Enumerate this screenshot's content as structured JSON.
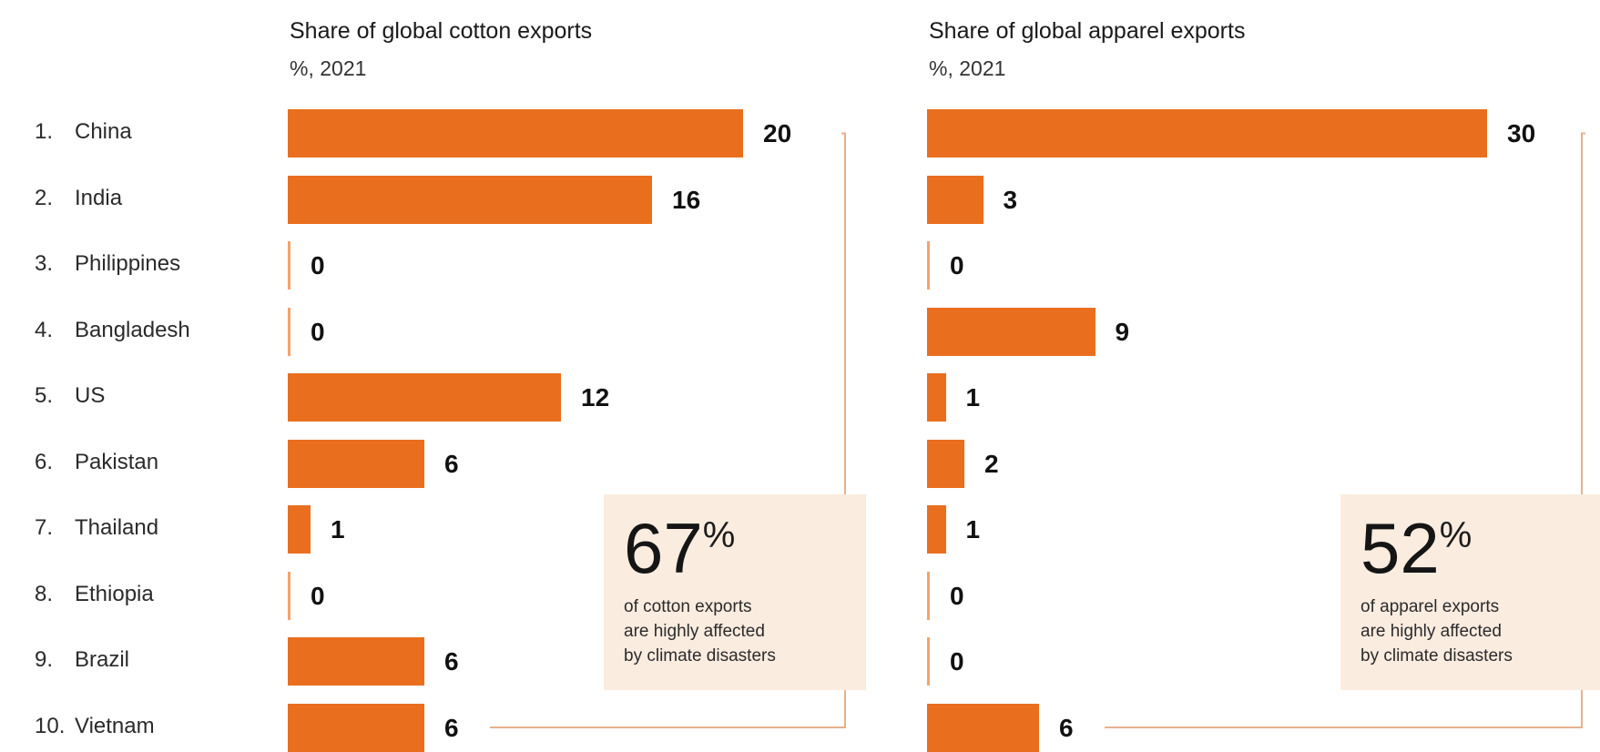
{
  "colors": {
    "bar": "#e96f1f",
    "zero_bar": "#f2a36b",
    "bracket": "#e7b08c",
    "callout_bg": "#fbece0"
  },
  "countries": [
    {
      "rank": "1.",
      "name": "China"
    },
    {
      "rank": "2.",
      "name": "India"
    },
    {
      "rank": "3.",
      "name": "Philippines"
    },
    {
      "rank": "4.",
      "name": "Bangladesh"
    },
    {
      "rank": "5.",
      "name": "US"
    },
    {
      "rank": "6.",
      "name": "Pakistan"
    },
    {
      "rank": "7.",
      "name": "Thailand"
    },
    {
      "rank": "8.",
      "name": "Ethiopia"
    },
    {
      "rank": "9.",
      "name": "Brazil"
    },
    {
      "rank": "10.",
      "name": "Vietnam"
    }
  ],
  "chart_data": [
    {
      "type": "bar",
      "orientation": "horizontal",
      "title": "Share of global cotton exports",
      "subtitle": "%, 2021",
      "categories": [
        "China",
        "India",
        "Philippines",
        "Bangladesh",
        "US",
        "Pakistan",
        "Thailand",
        "Ethiopia",
        "Brazil",
        "Vietnam"
      ],
      "values": [
        20,
        16,
        0,
        0,
        12,
        6,
        1,
        0,
        6,
        6
      ],
      "callout": {
        "value": "67",
        "unit": "%",
        "text_lines": [
          "of cotton exports",
          "are highly affected",
          "by climate disasters"
        ]
      }
    },
    {
      "type": "bar",
      "orientation": "horizontal",
      "title": "Share of global apparel exports",
      "subtitle": "%, 2021",
      "categories": [
        "China",
        "India",
        "Philippines",
        "Bangladesh",
        "US",
        "Pakistan",
        "Thailand",
        "Ethiopia",
        "Brazil",
        "Vietnam"
      ],
      "values": [
        30,
        3,
        0,
        9,
        1,
        2,
        1,
        0,
        0,
        6
      ],
      "callout": {
        "value": "52",
        "unit": "%",
        "text_lines": [
          "of apparel exports",
          "are highly affected",
          "by climate disasters"
        ]
      }
    }
  ]
}
